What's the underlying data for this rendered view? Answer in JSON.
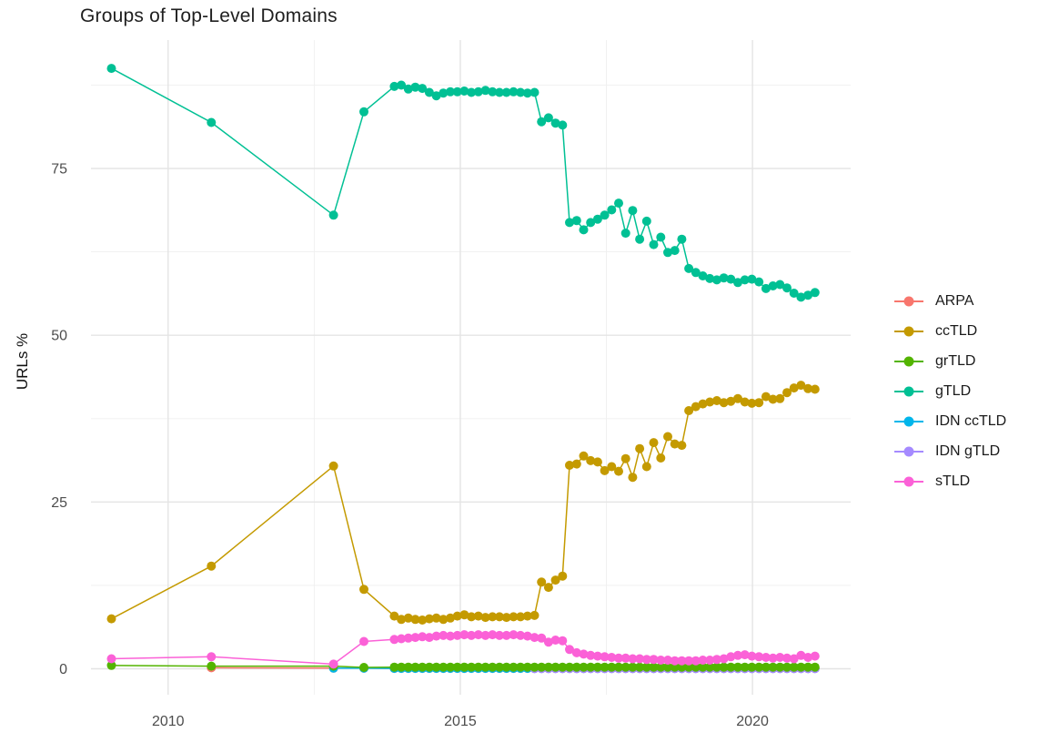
{
  "chart_data": {
    "type": "line",
    "title": "Groups of Top-Level Domains",
    "xlabel": "",
    "ylabel": "URLs %",
    "x_ticks": [
      2010,
      2015,
      2020
    ],
    "x_minor_gridlines": [
      2012.5,
      2017.5
    ],
    "y_ticks": [
      0,
      25,
      50,
      75
    ],
    "y_minor_gridlines": [
      12.5,
      37.5,
      62.5,
      87.5
    ],
    "xlim": [
      2008.68,
      2021.68
    ],
    "ylim": [
      -3.89,
      94.25
    ],
    "grid": "on",
    "background_color": "#ffffff",
    "gridline_color": "#e4e4e4",
    "minor_gridline_color": "#efefef",
    "tick_label_color": "#4d4d4d",
    "legend_position": "right",
    "series": [
      {
        "name": "ARPA",
        "color": "#F8766D",
        "x": [
          2010.74,
          2012.83,
          2013.35,
          2013.87,
          2013.99,
          2014.11,
          2014.23,
          2014.35,
          2014.47,
          2014.59,
          2014.71,
          2014.83,
          2014.95,
          2015.07,
          2015.19,
          2015.31,
          2015.43,
          2015.55,
          2015.67,
          2015.79,
          2015.91,
          2016.03,
          2016.15,
          2016.27,
          2016.39,
          2016.51,
          2016.63,
          2016.75,
          2016.87,
          2016.99,
          2017.11,
          2017.23,
          2017.35,
          2017.47,
          2017.59,
          2017.71,
          2017.83,
          2017.95,
          2018.07,
          2018.19,
          2018.31,
          2018.43,
          2018.55,
          2018.67,
          2018.79,
          2018.91,
          2019.03,
          2019.15,
          2019.27,
          2019.39,
          2019.51,
          2019.63,
          2019.75,
          2019.87,
          2019.99,
          2020.11,
          2020.23,
          2020.35,
          2020.47,
          2020.59,
          2020.71,
          2020.83,
          2020.95,
          2021.07
        ],
        "y": [
          0.15,
          0.1,
          0.1,
          0.05,
          0.05,
          0.05,
          0.05,
          0.05,
          0.05,
          0.05,
          0.05,
          0.05,
          0.05,
          0.05,
          0.05,
          0.05,
          0.05,
          0.05,
          0.05,
          0.05,
          0.05,
          0.05,
          0.05,
          0.05,
          0.05,
          0.05,
          0.05,
          0.05,
          0.05,
          0.05,
          0.05,
          0.05,
          0.05,
          0.05,
          0.05,
          0.05,
          0.05,
          0.05,
          0.05,
          0.05,
          0.05,
          0.05,
          0.05,
          0.05,
          0.05,
          0.05,
          0.05,
          0.05,
          0.05,
          0.05,
          0.05,
          0.05,
          0.05,
          0.05,
          0.05,
          0.05,
          0.05,
          0.05,
          0.05,
          0.05,
          0.05,
          0.05,
          0.05,
          0.05
        ]
      },
      {
        "name": "ccTLD",
        "color": "#C49A00",
        "x": [
          2009.03,
          2010.74,
          2012.83,
          2013.35,
          2013.87,
          2013.99,
          2014.11,
          2014.23,
          2014.35,
          2014.47,
          2014.59,
          2014.71,
          2014.83,
          2014.95,
          2015.07,
          2015.19,
          2015.31,
          2015.43,
          2015.55,
          2015.67,
          2015.79,
          2015.91,
          2016.03,
          2016.15,
          2016.27,
          2016.39,
          2016.51,
          2016.63,
          2016.75,
          2016.87,
          2016.99,
          2017.11,
          2017.23,
          2017.35,
          2017.47,
          2017.59,
          2017.71,
          2017.83,
          2017.95,
          2018.07,
          2018.19,
          2018.31,
          2018.43,
          2018.55,
          2018.67,
          2018.79,
          2018.91,
          2019.03,
          2019.15,
          2019.27,
          2019.39,
          2019.51,
          2019.63,
          2019.75,
          2019.87,
          2019.99,
          2020.11,
          2020.23,
          2020.35,
          2020.47,
          2020.59,
          2020.71,
          2020.83,
          2020.95,
          2021.07
        ],
        "y": [
          7.5,
          15.4,
          30.4,
          11.9,
          7.9,
          7.4,
          7.6,
          7.4,
          7.3,
          7.5,
          7.6,
          7.4,
          7.6,
          7.9,
          8.1,
          7.8,
          7.9,
          7.7,
          7.8,
          7.8,
          7.7,
          7.8,
          7.8,
          7.9,
          8.0,
          13.0,
          12.2,
          13.3,
          13.9,
          30.5,
          30.7,
          31.9,
          31.2,
          31.0,
          29.7,
          30.3,
          29.6,
          31.5,
          28.7,
          33.0,
          30.3,
          33.9,
          31.6,
          34.8,
          33.7,
          33.5,
          38.7,
          39.3,
          39.7,
          40.0,
          40.2,
          39.9,
          40.1,
          40.5,
          40.0,
          39.8,
          39.9,
          40.8,
          40.4,
          40.5,
          41.4,
          42.1,
          42.5,
          42.0,
          41.9
        ]
      },
      {
        "name": "grTLD",
        "color": "#53B400",
        "x": [
          2009.03,
          2010.74,
          2012.83,
          2013.35,
          2013.87,
          2013.99,
          2014.11,
          2014.23,
          2014.35,
          2014.47,
          2014.59,
          2014.71,
          2014.83,
          2014.95,
          2015.07,
          2015.19,
          2015.31,
          2015.43,
          2015.55,
          2015.67,
          2015.79,
          2015.91,
          2016.03,
          2016.15,
          2016.27,
          2016.39,
          2016.51,
          2016.63,
          2016.75,
          2016.87,
          2016.99,
          2017.11,
          2017.23,
          2017.35,
          2017.47,
          2017.59,
          2017.71,
          2017.83,
          2017.95,
          2018.07,
          2018.19,
          2018.31,
          2018.43,
          2018.55,
          2018.67,
          2018.79,
          2018.91,
          2019.03,
          2019.15,
          2019.27,
          2019.39,
          2019.51,
          2019.63,
          2019.75,
          2019.87,
          2019.99,
          2020.11,
          2020.23,
          2020.35,
          2020.47,
          2020.59,
          2020.71,
          2020.83,
          2020.95,
          2021.07
        ],
        "y": [
          0.5,
          0.4,
          0.4,
          0.2,
          0.25,
          0.25,
          0.25,
          0.25,
          0.25,
          0.25,
          0.25,
          0.25,
          0.25,
          0.25,
          0.25,
          0.25,
          0.25,
          0.25,
          0.25,
          0.25,
          0.25,
          0.25,
          0.25,
          0.25,
          0.25,
          0.25,
          0.25,
          0.25,
          0.25,
          0.25,
          0.25,
          0.25,
          0.25,
          0.25,
          0.25,
          0.25,
          0.25,
          0.25,
          0.25,
          0.25,
          0.25,
          0.25,
          0.25,
          0.25,
          0.25,
          0.25,
          0.25,
          0.25,
          0.25,
          0.25,
          0.25,
          0.25,
          0.25,
          0.25,
          0.25,
          0.25,
          0.25,
          0.25,
          0.25,
          0.25,
          0.25,
          0.25,
          0.25,
          0.25,
          0.25
        ]
      },
      {
        "name": "gTLD",
        "color": "#00C094",
        "x": [
          2009.03,
          2010.74,
          2012.83,
          2013.35,
          2013.87,
          2013.99,
          2014.11,
          2014.23,
          2014.35,
          2014.47,
          2014.59,
          2014.71,
          2014.83,
          2014.95,
          2015.07,
          2015.19,
          2015.31,
          2015.43,
          2015.55,
          2015.67,
          2015.79,
          2015.91,
          2016.03,
          2016.15,
          2016.27,
          2016.39,
          2016.51,
          2016.63,
          2016.75,
          2016.87,
          2016.99,
          2017.11,
          2017.23,
          2017.35,
          2017.47,
          2017.59,
          2017.71,
          2017.83,
          2017.95,
          2018.07,
          2018.19,
          2018.31,
          2018.43,
          2018.55,
          2018.67,
          2018.79,
          2018.91,
          2019.03,
          2019.15,
          2019.27,
          2019.39,
          2019.51,
          2019.63,
          2019.75,
          2019.87,
          2019.99,
          2020.11,
          2020.23,
          2020.35,
          2020.47,
          2020.59,
          2020.71,
          2020.83,
          2020.95,
          2021.07
        ],
        "y": [
          90.0,
          81.9,
          68.0,
          83.5,
          87.3,
          87.5,
          86.9,
          87.2,
          87.0,
          86.4,
          85.9,
          86.3,
          86.5,
          86.5,
          86.6,
          86.4,
          86.5,
          86.7,
          86.5,
          86.4,
          86.4,
          86.5,
          86.4,
          86.3,
          86.4,
          82.0,
          82.6,
          81.8,
          81.5,
          66.9,
          67.2,
          65.8,
          66.9,
          67.4,
          68.0,
          68.8,
          69.8,
          65.3,
          68.7,
          64.4,
          67.1,
          63.6,
          64.7,
          62.4,
          62.7,
          64.4,
          60.0,
          59.4,
          58.9,
          58.5,
          58.3,
          58.6,
          58.4,
          57.9,
          58.3,
          58.4,
          58.0,
          57.0,
          57.4,
          57.6,
          57.1,
          56.3,
          55.7,
          56.0,
          56.4
        ]
      },
      {
        "name": "IDN ccTLD",
        "color": "#00B6EB",
        "x": [
          2012.83,
          2013.35,
          2013.87,
          2013.99,
          2014.11,
          2014.23,
          2014.35,
          2014.47,
          2014.59,
          2014.71,
          2014.83,
          2014.95,
          2015.07,
          2015.19,
          2015.31,
          2015.43,
          2015.55,
          2015.67,
          2015.79,
          2015.91,
          2016.03,
          2016.15,
          2016.27,
          2016.39,
          2016.51,
          2016.63,
          2016.75,
          2016.87,
          2016.99,
          2017.11,
          2017.23,
          2017.35,
          2017.47,
          2017.59,
          2017.71,
          2017.83,
          2017.95,
          2018.07,
          2018.19,
          2018.31,
          2018.43,
          2018.55,
          2018.67,
          2018.79,
          2018.91,
          2019.03,
          2019.15,
          2019.27,
          2019.39,
          2019.51,
          2019.63,
          2019.75,
          2019.87,
          2019.99,
          2020.11,
          2020.23,
          2020.35,
          2020.47,
          2020.59,
          2020.71,
          2020.83,
          2020.95,
          2021.07
        ],
        "y": [
          0.1,
          0.08,
          0.05,
          0.05,
          0.05,
          0.05,
          0.05,
          0.05,
          0.05,
          0.05,
          0.05,
          0.05,
          0.05,
          0.05,
          0.05,
          0.05,
          0.05,
          0.05,
          0.05,
          0.05,
          0.05,
          0.05,
          0.05,
          0.05,
          0.05,
          0.05,
          0.05,
          0.05,
          0.05,
          0.05,
          0.05,
          0.05,
          0.05,
          0.05,
          0.05,
          0.05,
          0.05,
          0.05,
          0.05,
          0.05,
          0.05,
          0.05,
          0.05,
          0.05,
          0.05,
          0.05,
          0.05,
          0.05,
          0.05,
          0.05,
          0.05,
          0.05,
          0.05,
          0.05,
          0.05,
          0.05,
          0.05,
          0.05,
          0.05,
          0.05,
          0.05,
          0.05,
          0.05
        ]
      },
      {
        "name": "IDN gTLD",
        "color": "#A58AFF",
        "x": [
          2016.27,
          2016.39,
          2016.51,
          2016.63,
          2016.75,
          2016.87,
          2016.99,
          2017.11,
          2017.23,
          2017.35,
          2017.47,
          2017.59,
          2017.71,
          2017.83,
          2017.95,
          2018.07,
          2018.19,
          2018.31,
          2018.43,
          2018.55,
          2018.67,
          2018.79,
          2018.91,
          2019.03,
          2019.15,
          2019.27,
          2019.39,
          2019.51,
          2019.63,
          2019.75,
          2019.87,
          2019.99,
          2020.11,
          2020.23,
          2020.35,
          2020.47,
          2020.59,
          2020.71,
          2020.83,
          2020.95,
          2021.07
        ],
        "y": [
          0.02,
          0.02,
          0.02,
          0.02,
          0.02,
          0.02,
          0.02,
          0.02,
          0.02,
          0.02,
          0.02,
          0.02,
          0.02,
          0.02,
          0.02,
          0.02,
          0.02,
          0.02,
          0.02,
          0.02,
          0.02,
          0.02,
          0.02,
          0.02,
          0.02,
          0.02,
          0.02,
          0.02,
          0.02,
          0.02,
          0.02,
          0.02,
          0.02,
          0.02,
          0.02,
          0.02,
          0.02,
          0.02,
          0.02,
          0.02,
          0.02
        ]
      },
      {
        "name": "sTLD",
        "color": "#FB61D7",
        "x": [
          2009.03,
          2010.74,
          2012.83,
          2013.35,
          2013.87,
          2013.99,
          2014.11,
          2014.23,
          2014.35,
          2014.47,
          2014.59,
          2014.71,
          2014.83,
          2014.95,
          2015.07,
          2015.19,
          2015.31,
          2015.43,
          2015.55,
          2015.67,
          2015.79,
          2015.91,
          2016.03,
          2016.15,
          2016.27,
          2016.39,
          2016.51,
          2016.63,
          2016.75,
          2016.87,
          2016.99,
          2017.11,
          2017.23,
          2017.35,
          2017.47,
          2017.59,
          2017.71,
          2017.83,
          2017.95,
          2018.07,
          2018.19,
          2018.31,
          2018.43,
          2018.55,
          2018.67,
          2018.79,
          2018.91,
          2019.03,
          2019.15,
          2019.27,
          2019.39,
          2019.51,
          2019.63,
          2019.75,
          2019.87,
          2019.99,
          2020.11,
          2020.23,
          2020.35,
          2020.47,
          2020.59,
          2020.71,
          2020.83,
          2020.95,
          2021.07
        ],
        "y": [
          1.5,
          1.8,
          0.7,
          4.1,
          4.4,
          4.5,
          4.6,
          4.7,
          4.8,
          4.7,
          4.9,
          5.0,
          4.9,
          5.0,
          5.1,
          5.0,
          5.1,
          5.0,
          5.1,
          5.0,
          5.0,
          5.1,
          5.0,
          4.9,
          4.7,
          4.6,
          4.0,
          4.3,
          4.2,
          2.9,
          2.4,
          2.2,
          2.0,
          1.9,
          1.8,
          1.7,
          1.6,
          1.6,
          1.5,
          1.5,
          1.4,
          1.4,
          1.3,
          1.3,
          1.2,
          1.2,
          1.2,
          1.2,
          1.3,
          1.3,
          1.4,
          1.5,
          1.8,
          2.0,
          2.1,
          1.9,
          1.8,
          1.7,
          1.6,
          1.7,
          1.6,
          1.5,
          2.0,
          1.7,
          1.9
        ]
      }
    ]
  }
}
